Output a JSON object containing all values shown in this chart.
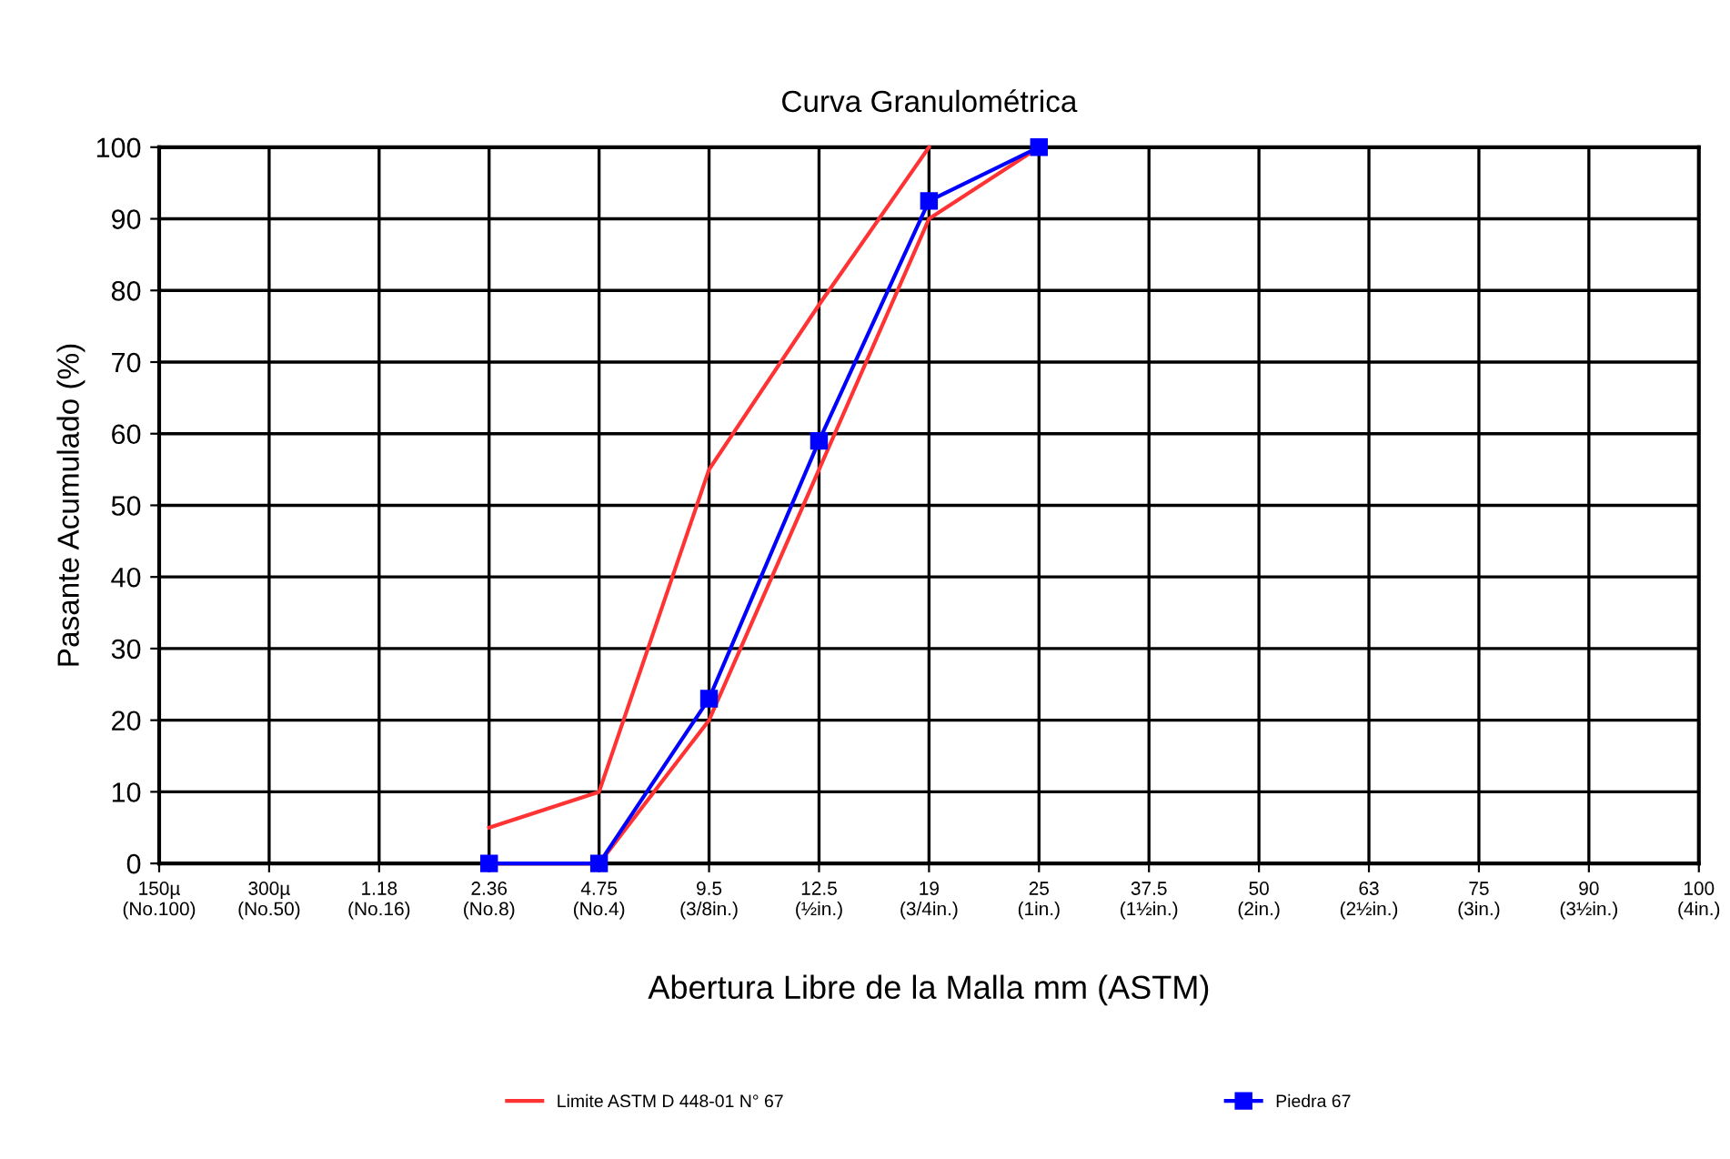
{
  "chart_data": {
    "type": "line",
    "title": "Curva Granulométrica",
    "xlabel": "Abertura Libre de la Malla mm (ASTM)",
    "ylabel": "Pasante Acumulado (%)",
    "categories": [
      "150µ\n(No.100)",
      "300µ\n(No.50)",
      "1.18\n(No.16)",
      "2.36\n(No.8)",
      "4.75\n(No.4)",
      "9.5\n(3/8in.)",
      "12.5\n(½in.)",
      "19\n(3/4in.)",
      "25\n(1in.)",
      "37.5\n(1½in.)",
      "50\n(2in.)",
      "63\n(2½in.)",
      "75\n(3in.)",
      "90\n(3½in.)",
      "100\n(4in.)"
    ],
    "series": [
      {
        "name": "Limite ASTM D 448-01 N° 67",
        "color": "#ff3333",
        "marker": "none",
        "values": [
          null,
          null,
          null,
          5,
          10,
          55,
          78,
          100,
          null,
          null,
          null,
          null,
          null,
          null,
          null
        ]
      },
      {
        "color": "#ff3333",
        "marker": "none",
        "values": [
          null,
          null,
          null,
          0,
          0,
          20,
          55,
          90,
          100,
          null,
          null,
          null,
          null,
          null,
          null
        ]
      },
      {
        "name": "Piedra 67",
        "color": "#0000ff",
        "marker": "square",
        "values": [
          null,
          null,
          null,
          0,
          0,
          23,
          59,
          92.5,
          100,
          null,
          null,
          null,
          null,
          null,
          null
        ]
      }
    ],
    "ylim": [
      0,
      100
    ],
    "yticks": [
      0,
      10,
      20,
      30,
      40,
      50,
      60,
      70,
      80,
      90,
      100
    ],
    "grid": true,
    "legend": "bottom"
  }
}
